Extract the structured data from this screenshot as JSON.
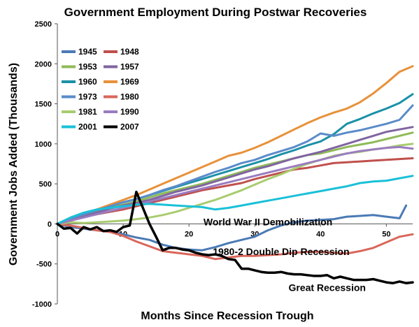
{
  "chart_data": {
    "type": "line",
    "title": "Government Employment During Postwar Recoveries",
    "xlabel": "Months Since Recession Trough",
    "ylabel": "Government Jobs Added (Thousands)",
    "xlim": [
      0,
      54
    ],
    "ylim": [
      -1000,
      2500
    ],
    "xticks": [
      0,
      10,
      20,
      30,
      40,
      50
    ],
    "yticks": [
      -1000,
      -500,
      0,
      500,
      1000,
      1500,
      2000,
      2500
    ],
    "grid": false,
    "legend_placement": "top-left",
    "annotations": [
      {
        "text": "World War II Demobilization",
        "x": 32,
        "y": -20
      },
      {
        "text": "1980-2 Double Dip Recession",
        "x": 34,
        "y": -390
      },
      {
        "text": "Great Recession",
        "x": 41,
        "y": -840
      }
    ],
    "series": [
      {
        "name": "1945",
        "color": "#4a7ab5",
        "width": 3,
        "x": [
          0,
          2,
          4,
          6,
          8,
          10,
          12,
          14,
          16,
          18,
          20,
          22,
          24,
          26,
          28,
          30,
          32,
          34,
          36,
          38,
          40,
          42,
          44,
          46,
          48,
          50,
          52,
          53
        ],
        "y": [
          0,
          -40,
          -60,
          -80,
          -100,
          -130,
          -170,
          -200,
          -260,
          -300,
          -320,
          -330,
          -290,
          -240,
          -200,
          -160,
          -80,
          -20,
          20,
          40,
          50,
          60,
          90,
          100,
          110,
          90,
          70,
          230
        ]
      },
      {
        "name": "1948",
        "color": "#c0504d",
        "width": 3,
        "x": [
          0,
          2,
          4,
          6,
          8,
          10,
          12,
          14,
          16,
          18,
          20,
          22,
          24,
          26,
          28,
          30,
          32,
          34,
          36,
          38,
          40,
          42,
          44,
          46,
          48,
          50,
          52,
          54
        ],
        "y": [
          0,
          40,
          90,
          120,
          150,
          180,
          220,
          260,
          300,
          340,
          380,
          420,
          450,
          480,
          510,
          560,
          600,
          640,
          680,
          700,
          730,
          760,
          770,
          780,
          790,
          800,
          810,
          820
        ]
      },
      {
        "name": "1953",
        "color": "#8fba58",
        "width": 3,
        "x": [
          0,
          2,
          4,
          6,
          8,
          10,
          12,
          14,
          16,
          18,
          20,
          22,
          24,
          26,
          28,
          30,
          32,
          34,
          36,
          38,
          40,
          42,
          44,
          46,
          48,
          50,
          52,
          54
        ],
        "y": [
          0,
          50,
          100,
          150,
          200,
          240,
          280,
          330,
          380,
          420,
          460,
          500,
          550,
          600,
          650,
          700,
          740,
          780,
          820,
          860,
          880,
          920,
          960,
          990,
          1020,
          1060,
          1100,
          1140
        ]
      },
      {
        "name": "1957",
        "color": "#8064a2",
        "width": 3,
        "x": [
          0,
          2,
          4,
          6,
          8,
          10,
          12,
          14,
          16,
          18,
          20,
          22,
          24,
          26,
          28,
          30,
          32,
          34,
          36,
          38,
          40,
          42,
          44,
          46,
          48,
          50,
          52,
          54
        ],
        "y": [
          0,
          40,
          90,
          140,
          190,
          230,
          260,
          300,
          350,
          400,
          440,
          480,
          530,
          580,
          630,
          680,
          720,
          770,
          820,
          860,
          900,
          950,
          1000,
          1050,
          1100,
          1150,
          1180,
          1210
        ]
      },
      {
        "name": "1960",
        "color": "#1b91a7",
        "width": 3,
        "x": [
          0,
          2,
          4,
          6,
          8,
          10,
          12,
          14,
          16,
          18,
          20,
          22,
          24,
          26,
          28,
          30,
          32,
          34,
          36,
          38,
          40,
          42,
          44,
          46,
          48,
          50,
          52,
          54
        ],
        "y": [
          0,
          60,
          120,
          170,
          220,
          270,
          310,
          360,
          410,
          460,
          510,
          560,
          610,
          660,
          710,
          760,
          810,
          870,
          920,
          980,
          1030,
          1120,
          1250,
          1310,
          1380,
          1440,
          1510,
          1620
        ]
      },
      {
        "name": "1969",
        "color": "#e8913a",
        "width": 3,
        "x": [
          0,
          2,
          4,
          6,
          8,
          10,
          12,
          14,
          16,
          18,
          20,
          22,
          24,
          26,
          28,
          30,
          32,
          34,
          36,
          38,
          40,
          42,
          44,
          46,
          48,
          50,
          52,
          54
        ],
        "y": [
          0,
          60,
          120,
          180,
          240,
          300,
          360,
          430,
          500,
          570,
          640,
          710,
          780,
          850,
          890,
          950,
          1020,
          1100,
          1180,
          1260,
          1330,
          1390,
          1440,
          1520,
          1630,
          1760,
          1900,
          1970
        ]
      },
      {
        "name": "1973",
        "color": "#5a8bc9",
        "width": 3,
        "x": [
          0,
          2,
          4,
          6,
          8,
          10,
          12,
          14,
          16,
          18,
          20,
          22,
          24,
          26,
          28,
          30,
          32,
          34,
          36,
          38,
          40,
          42,
          44,
          46,
          48,
          50,
          52,
          54
        ],
        "y": [
          0,
          60,
          120,
          170,
          220,
          270,
          310,
          360,
          420,
          470,
          530,
          590,
          650,
          700,
          760,
          800,
          860,
          910,
          960,
          1030,
          1130,
          1100,
          1140,
          1170,
          1210,
          1250,
          1300,
          1480
        ]
      },
      {
        "name": "1980",
        "color": "#d9665a",
        "width": 3,
        "x": [
          0,
          2,
          4,
          6,
          8,
          10,
          12,
          14,
          16,
          18,
          20,
          22,
          24,
          26,
          28,
          30,
          32,
          34,
          36,
          38,
          40,
          42,
          44,
          46,
          48,
          50,
          52,
          54
        ],
        "y": [
          0,
          -20,
          -50,
          -80,
          -100,
          -150,
          -220,
          -280,
          -340,
          -360,
          -380,
          -400,
          -440,
          -420,
          -400,
          -400,
          -390,
          -380,
          -360,
          -350,
          -350,
          -360,
          -370,
          -340,
          -300,
          -230,
          -160,
          -130
        ]
      },
      {
        "name": "1981",
        "color": "#a8cc6f",
        "width": 3,
        "x": [
          0,
          2,
          4,
          6,
          8,
          10,
          12,
          14,
          16,
          18,
          20,
          22,
          24,
          26,
          28,
          30,
          32,
          34,
          36,
          38,
          40,
          42,
          44,
          46,
          48,
          50,
          52,
          54
        ],
        "y": [
          0,
          20,
          10,
          20,
          30,
          40,
          60,
          80,
          110,
          150,
          200,
          250,
          300,
          360,
          420,
          490,
          560,
          620,
          690,
          750,
          800,
          850,
          880,
          900,
          930,
          950,
          980,
          1000
        ]
      },
      {
        "name": "1990",
        "color": "#9a7cc0",
        "width": 3,
        "x": [
          0,
          2,
          4,
          6,
          8,
          10,
          12,
          14,
          16,
          18,
          20,
          22,
          24,
          26,
          28,
          30,
          32,
          34,
          36,
          38,
          40,
          42,
          44,
          46,
          48,
          50,
          52,
          54
        ],
        "y": [
          0,
          40,
          80,
          120,
          160,
          200,
          240,
          280,
          320,
          360,
          400,
          440,
          480,
          520,
          560,
          600,
          640,
          680,
          720,
          760,
          800,
          840,
          880,
          910,
          930,
          950,
          960,
          940
        ]
      },
      {
        "name": "2001",
        "color": "#1ac0d8",
        "width": 3,
        "x": [
          0,
          2,
          4,
          6,
          8,
          10,
          12,
          14,
          16,
          18,
          20,
          22,
          24,
          26,
          28,
          30,
          32,
          34,
          36,
          38,
          40,
          42,
          44,
          46,
          48,
          50,
          52,
          54
        ],
        "y": [
          0,
          80,
          140,
          180,
          200,
          220,
          240,
          250,
          240,
          230,
          220,
          210,
          180,
          200,
          230,
          260,
          290,
          320,
          350,
          380,
          410,
          440,
          470,
          510,
          530,
          540,
          570,
          600
        ]
      },
      {
        "name": "2007",
        "color": "#000000",
        "width": 3.5,
        "x": [
          0,
          1,
          2,
          3,
          4,
          5,
          6,
          7,
          8,
          9,
          10,
          11,
          12,
          13,
          14,
          15,
          16,
          17,
          18,
          19,
          20,
          21,
          22,
          23,
          24,
          25,
          26,
          27,
          28,
          29,
          30,
          31,
          32,
          33,
          34,
          35,
          36,
          37,
          38,
          39,
          40,
          41,
          42,
          43,
          44,
          45,
          46,
          47,
          48,
          49,
          50,
          51,
          52,
          53,
          54
        ],
        "y": [
          0,
          -60,
          -50,
          -120,
          -40,
          -70,
          -40,
          -90,
          -80,
          -100,
          -40,
          -20,
          400,
          200,
          0,
          -160,
          -330,
          -300,
          -300,
          -320,
          -330,
          -360,
          -380,
          -390,
          -380,
          -400,
          -440,
          -450,
          -560,
          -560,
          -580,
          -600,
          -610,
          -610,
          -600,
          -620,
          -630,
          -630,
          -640,
          -650,
          -650,
          -640,
          -680,
          -660,
          -680,
          -700,
          -700,
          -700,
          -690,
          -710,
          -730,
          -740,
          -720,
          -740,
          -730
        ]
      }
    ]
  }
}
